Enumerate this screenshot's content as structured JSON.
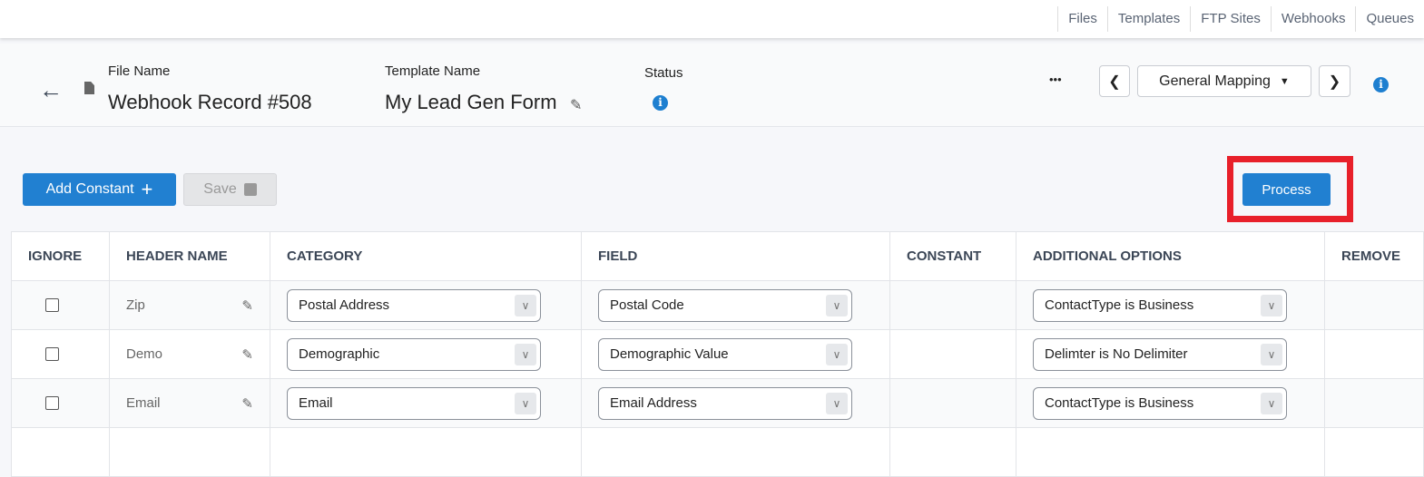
{
  "topnav": [
    "Files",
    "Templates",
    "FTP Sites",
    "Webhooks",
    "Queues"
  ],
  "header": {
    "file_label": "File Name",
    "file_name": "Webhook Record #508",
    "template_label": "Template Name",
    "template_name": "My Lead Gen Form",
    "status_label": "Status",
    "more": "•••",
    "mapping": "General Mapping"
  },
  "toolbar": {
    "add_constant": "Add Constant",
    "save": "Save",
    "process": "Process"
  },
  "colors": {
    "primary": "#2180d1",
    "highlight": "#e8202a"
  },
  "table": {
    "headers": [
      "IGNORE",
      "HEADER NAME",
      "CATEGORY",
      "FIELD",
      "CONSTANT",
      "ADDITIONAL OPTIONS",
      "REMOVE"
    ],
    "rows": [
      {
        "header": "Zip",
        "category": "Postal Address",
        "field": "Postal Code",
        "constant": "",
        "options": "ContactType is Business"
      },
      {
        "header": "Demo",
        "category": "Demographic",
        "field": "Demographic Value",
        "constant": "",
        "options": "Delimter is No Delimiter"
      },
      {
        "header": "Email",
        "category": "Email",
        "field": "Email Address",
        "constant": "",
        "options": "ContactType is Business"
      }
    ]
  }
}
